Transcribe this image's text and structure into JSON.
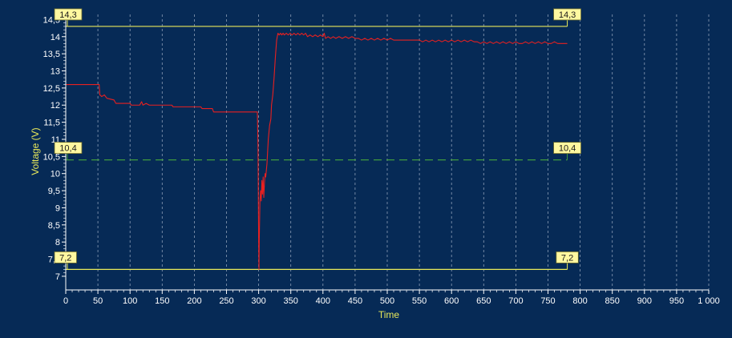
{
  "chart_data": {
    "type": "line",
    "xlabel": "Time",
    "ylabel": "Voltage (V)",
    "xlim": [
      0,
      1000
    ],
    "ylim": [
      6.6,
      14.65
    ],
    "x_ticks": [
      0,
      50,
      100,
      150,
      200,
      250,
      300,
      350,
      400,
      450,
      500,
      550,
      600,
      650,
      700,
      750,
      800,
      850,
      900,
      950,
      1000
    ],
    "x_tick_labels": [
      "0",
      "50",
      "100",
      "150",
      "200",
      "250",
      "300",
      "350",
      "400",
      "450",
      "500",
      "550",
      "600",
      "650",
      "700",
      "750",
      "800",
      "850",
      "900",
      "950",
      "1 000"
    ],
    "y_ticks": [
      7,
      7.5,
      8,
      8.5,
      9,
      9.5,
      10,
      10.5,
      11,
      11.5,
      12,
      12.5,
      13,
      13.5,
      14,
      14.5
    ],
    "y_tick_labels": [
      "7",
      "7,5",
      "8",
      "8,5",
      "9",
      "9,5",
      "10",
      "10,5",
      "11",
      "11,5",
      "12",
      "12,5",
      "13",
      "13,5",
      "14",
      "14,5"
    ],
    "grid": {
      "vertical": true,
      "horizontal": false
    },
    "colors": {
      "background": "#062a56",
      "axis_text": "#ffffff",
      "axis_title": "#e8e85a",
      "series": "#e82020",
      "threshold_line": "#e8e85a",
      "mid_line": "#3f9a3f",
      "label_bg": "#fff8a0"
    },
    "threshold_lines": [
      {
        "value": 14.3,
        "label": "14,3",
        "x_start": 0,
        "x_end": 780,
        "style": "solid",
        "color": "#e8e85a"
      },
      {
        "value": 10.4,
        "label": "10,4",
        "x_start": 0,
        "x_end": 780,
        "style": "dashed",
        "color": "#3f9a3f"
      },
      {
        "value": 7.2,
        "label": "7,2",
        "x_start": 0,
        "x_end": 780,
        "style": "solid",
        "color": "#e8e85a"
      }
    ],
    "series": [
      {
        "values_xy": [
          [
            0,
            12.6
          ],
          [
            52,
            12.6
          ],
          [
            53,
            12.3
          ],
          [
            56,
            12.25
          ],
          [
            60,
            12.3
          ],
          [
            64,
            12.2
          ],
          [
            75,
            12.15
          ],
          [
            78,
            12.05
          ],
          [
            100,
            12.05
          ],
          [
            102,
            12.0
          ],
          [
            115,
            12.0
          ],
          [
            118,
            12.1
          ],
          [
            120,
            12.0
          ],
          [
            125,
            12.05
          ],
          [
            130,
            12.0
          ],
          [
            165,
            12.0
          ],
          [
            167,
            11.95
          ],
          [
            210,
            11.95
          ],
          [
            212,
            11.9
          ],
          [
            228,
            11.9
          ],
          [
            230,
            11.8
          ],
          [
            298,
            11.8
          ],
          [
            299,
            10.8
          ],
          [
            300,
            8.1
          ],
          [
            300.5,
            7.2
          ],
          [
            301,
            8.1
          ],
          [
            302,
            9.2
          ],
          [
            303,
            9.5
          ],
          [
            304,
            9.2
          ],
          [
            305,
            9.8
          ],
          [
            306,
            9.4
          ],
          [
            307,
            9.9
          ],
          [
            308,
            9.3
          ],
          [
            309,
            9.7
          ],
          [
            310,
            10.0
          ],
          [
            311,
            9.9
          ],
          [
            313,
            10.3
          ],
          [
            315,
            11.0
          ],
          [
            317,
            11.4
          ],
          [
            319,
            11.6
          ],
          [
            320,
            12.0
          ],
          [
            322,
            12.3
          ],
          [
            324,
            12.8
          ],
          [
            326,
            13.4
          ],
          [
            328,
            13.9
          ],
          [
            330,
            14.1
          ],
          [
            332,
            14.05
          ],
          [
            334,
            14.1
          ],
          [
            336,
            14.05
          ],
          [
            338,
            14.1
          ],
          [
            340,
            14.05
          ],
          [
            343,
            14.1
          ],
          [
            346,
            14.05
          ],
          [
            349,
            14.1
          ],
          [
            352,
            14.05
          ],
          [
            355,
            14.1
          ],
          [
            358,
            14.05
          ],
          [
            361,
            14.1
          ],
          [
            364,
            14.05
          ],
          [
            367,
            14.1
          ],
          [
            370,
            14.05
          ],
          [
            373,
            14.1
          ],
          [
            376,
            14.0
          ],
          [
            380,
            14.05
          ],
          [
            384,
            14.0
          ],
          [
            388,
            14.05
          ],
          [
            392,
            14.0
          ],
          [
            396,
            14.05
          ],
          [
            400,
            14.0
          ],
          [
            402,
            14.1
          ],
          [
            404,
            13.95
          ],
          [
            408,
            14.0
          ],
          [
            412,
            13.95
          ],
          [
            416,
            14.0
          ],
          [
            420,
            13.95
          ],
          [
            425,
            14.0
          ],
          [
            430,
            13.95
          ],
          [
            435,
            14.0
          ],
          [
            440,
            13.95
          ],
          [
            445,
            14.0
          ],
          [
            450,
            13.95
          ],
          [
            455,
            13.95
          ],
          [
            460,
            13.9
          ],
          [
            465,
            13.95
          ],
          [
            470,
            13.9
          ],
          [
            475,
            13.95
          ],
          [
            480,
            13.9
          ],
          [
            485,
            13.95
          ],
          [
            490,
            13.9
          ],
          [
            495,
            13.95
          ],
          [
            500,
            13.9
          ],
          [
            505,
            13.95
          ],
          [
            510,
            13.9
          ],
          [
            520,
            13.9
          ],
          [
            530,
            13.9
          ],
          [
            540,
            13.9
          ],
          [
            550,
            13.9
          ],
          [
            555,
            13.85
          ],
          [
            560,
            13.9
          ],
          [
            565,
            13.85
          ],
          [
            570,
            13.9
          ],
          [
            575,
            13.85
          ],
          [
            580,
            13.9
          ],
          [
            585,
            13.85
          ],
          [
            590,
            13.9
          ],
          [
            595,
            13.85
          ],
          [
            600,
            13.9
          ],
          [
            605,
            13.85
          ],
          [
            610,
            13.9
          ],
          [
            615,
            13.85
          ],
          [
            620,
            13.9
          ],
          [
            625,
            13.85
          ],
          [
            630,
            13.9
          ],
          [
            635,
            13.85
          ],
          [
            640,
            13.85
          ],
          [
            645,
            13.8
          ],
          [
            650,
            13.85
          ],
          [
            655,
            13.8
          ],
          [
            660,
            13.85
          ],
          [
            665,
            13.8
          ],
          [
            670,
            13.85
          ],
          [
            675,
            13.8
          ],
          [
            680,
            13.85
          ],
          [
            685,
            13.8
          ],
          [
            690,
            13.85
          ],
          [
            695,
            13.8
          ],
          [
            700,
            13.85
          ],
          [
            705,
            13.8
          ],
          [
            710,
            13.8
          ],
          [
            715,
            13.85
          ],
          [
            720,
            13.8
          ],
          [
            725,
            13.85
          ],
          [
            730,
            13.8
          ],
          [
            735,
            13.85
          ],
          [
            740,
            13.8
          ],
          [
            745,
            13.85
          ],
          [
            750,
            13.8
          ],
          [
            755,
            13.8
          ],
          [
            760,
            13.85
          ],
          [
            765,
            13.8
          ],
          [
            770,
            13.8
          ],
          [
            775,
            13.8
          ],
          [
            780,
            13.8
          ]
        ]
      }
    ]
  }
}
